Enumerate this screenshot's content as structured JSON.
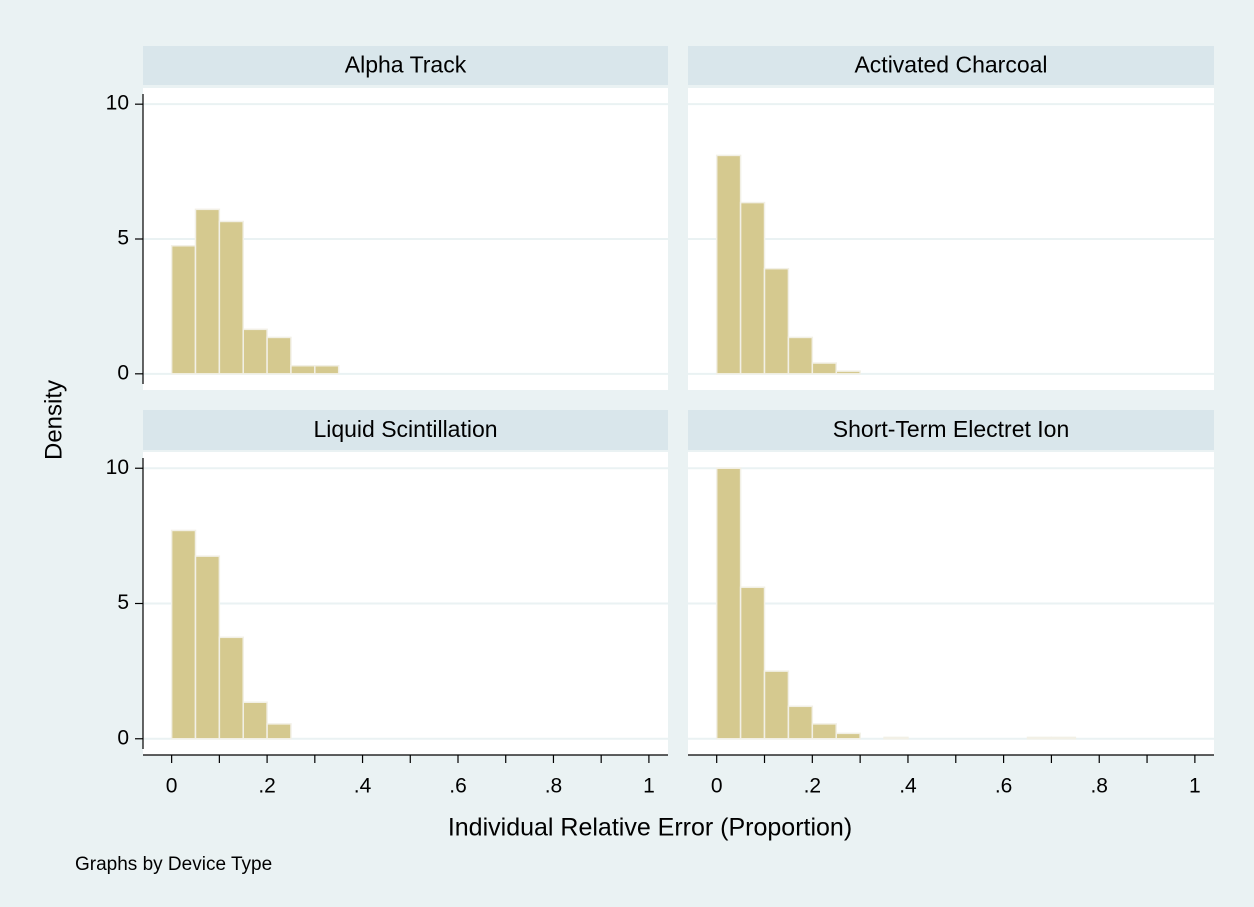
{
  "chart_data": [
    {
      "type": "histogram",
      "title": "Alpha Track",
      "bins": [
        0,
        0.05,
        0.1,
        0.15,
        0.2,
        0.25,
        0.3,
        0.35
      ],
      "values": [
        4.75,
        6.1,
        5.65,
        1.65,
        1.35,
        0.3,
        0.3
      ],
      "color": "#d5c98f"
    },
    {
      "type": "histogram",
      "title": "Activated Charcoal",
      "bins": [
        0,
        0.05,
        0.1,
        0.15,
        0.2,
        0.25,
        0.3
      ],
      "values": [
        8.1,
        6.35,
        3.9,
        1.35,
        0.4,
        0.1
      ],
      "color": "#d5c98f"
    },
    {
      "type": "histogram",
      "title": "Liquid Scintillation",
      "bins": [
        0,
        0.05,
        0.1,
        0.15,
        0.2,
        0.25
      ],
      "values": [
        7.7,
        6.75,
        3.75,
        1.35,
        0.55
      ],
      "color": "#d5c98f"
    },
    {
      "type": "histogram",
      "title": "Short-Term Electret Ion",
      "bins": [
        0,
        0.05,
        0.1,
        0.15,
        0.2,
        0.25,
        0.3,
        0.35,
        0.4,
        0.45,
        0.5,
        0.55,
        0.6,
        0.65,
        0.7,
        0.75
      ],
      "values": [
        10,
        5.6,
        2.5,
        1.2,
        0.55,
        0.2,
        0,
        0.05,
        0,
        0,
        0,
        0,
        0,
        0.05,
        0.05
      ],
      "color": "#d5c98f"
    }
  ],
  "ylabel": "Density",
  "xlabel": "Individual Relative Error (Proportion)",
  "note": "Graphs by Device Type",
  "xlim": [
    -0.06,
    1.04
  ],
  "xticks": [
    0,
    {
      "value": 0.2,
      "label": ".2"
    },
    {
      "value": 0.4,
      "label": ".4"
    },
    {
      "value": 0.6,
      "label": ".6"
    },
    {
      "value": 0.8,
      "label": ".8"
    },
    1
  ],
  "xminorticks": [
    0.1,
    0.3,
    0.5,
    0.7,
    0.9
  ],
  "ylim": [
    -0.6,
    10.6
  ],
  "yticks": [
    0,
    5,
    10
  ],
  "grid": true
}
